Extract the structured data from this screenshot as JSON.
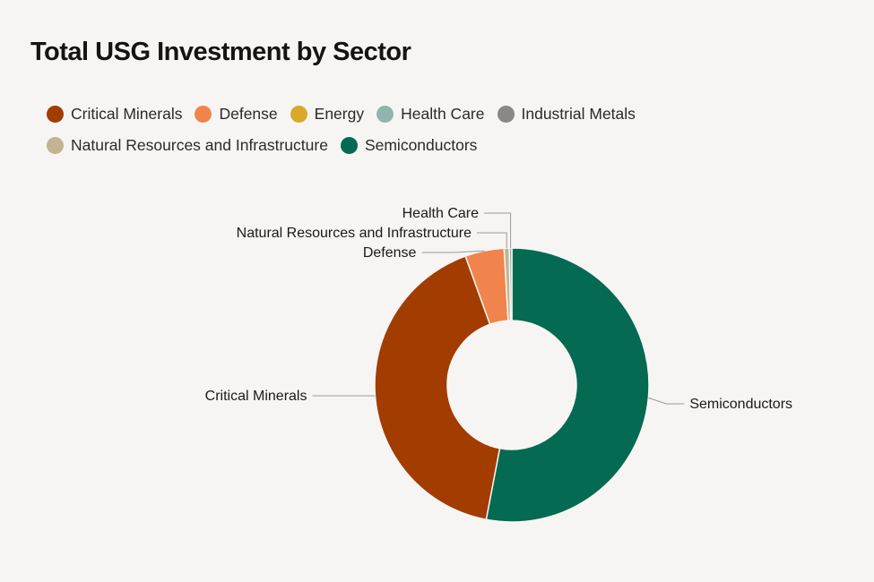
{
  "chart_data": {
    "type": "pie",
    "donut": true,
    "title": "Total USG Investment by Sector",
    "legend_position": "top-left",
    "series": [
      {
        "name": "Critical Minerals",
        "color": "#a33c00",
        "value": 41.5
      },
      {
        "name": "Defense",
        "color": "#f0844c",
        "value": 4.6
      },
      {
        "name": "Energy",
        "color": "#d9a92a",
        "value": 0.0
      },
      {
        "name": "Health Care",
        "color": "#8fb5ad",
        "value": 0.3
      },
      {
        "name": "Industrial Metals",
        "color": "#888888",
        "value": 0.0
      },
      {
        "name": "Natural Resources and Infrastructure",
        "color": "#c2b391",
        "value": 0.6
      },
      {
        "name": "Semiconductors",
        "color": "#046a52",
        "value": 53.0
      }
    ],
    "slice_labels": [
      "Health Care",
      "Natural Resources and Infrastructure",
      "Defense",
      "Critical Minerals",
      "Semiconductors"
    ]
  }
}
